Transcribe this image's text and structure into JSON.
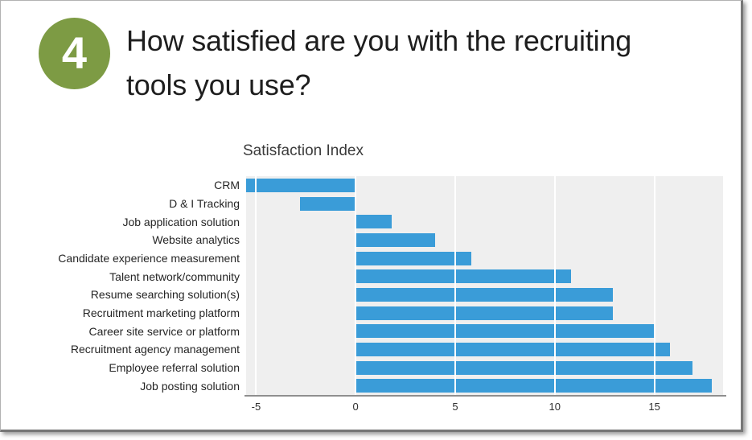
{
  "badge": {
    "number": "4",
    "color": "#7d9b44"
  },
  "title": {
    "line1": "How satisfied are you with the recruiting",
    "line2": "tools you use?"
  },
  "chart_data": {
    "type": "bar",
    "orientation": "horizontal",
    "title": "Satisfaction Index",
    "categories": [
      "CRM",
      "D & I Tracking",
      "Job application solution",
      "Website analytics",
      "Candidate experience measurement",
      "Talent network/community",
      "Resume searching solution(s)",
      "Recruitment marketing platform",
      "Career site service or platform",
      "Recruitment agency management",
      "Employee referral solution",
      "Job posting solution"
    ],
    "values": [
      -5.5,
      -2.8,
      1.8,
      4.0,
      5.8,
      10.8,
      12.9,
      12.9,
      15.0,
      15.8,
      16.9,
      17.9
    ],
    "xticks": [
      -5,
      0,
      5,
      10,
      15
    ],
    "xlim": [
      -5.5,
      18.45
    ],
    "grid_on": true,
    "legend_position": "none",
    "bar_color": "#3a9cd8",
    "plot_bg_color": "#efefef",
    "grid_color": "#ffffff",
    "axis_line_color": "#8f8f8f"
  }
}
